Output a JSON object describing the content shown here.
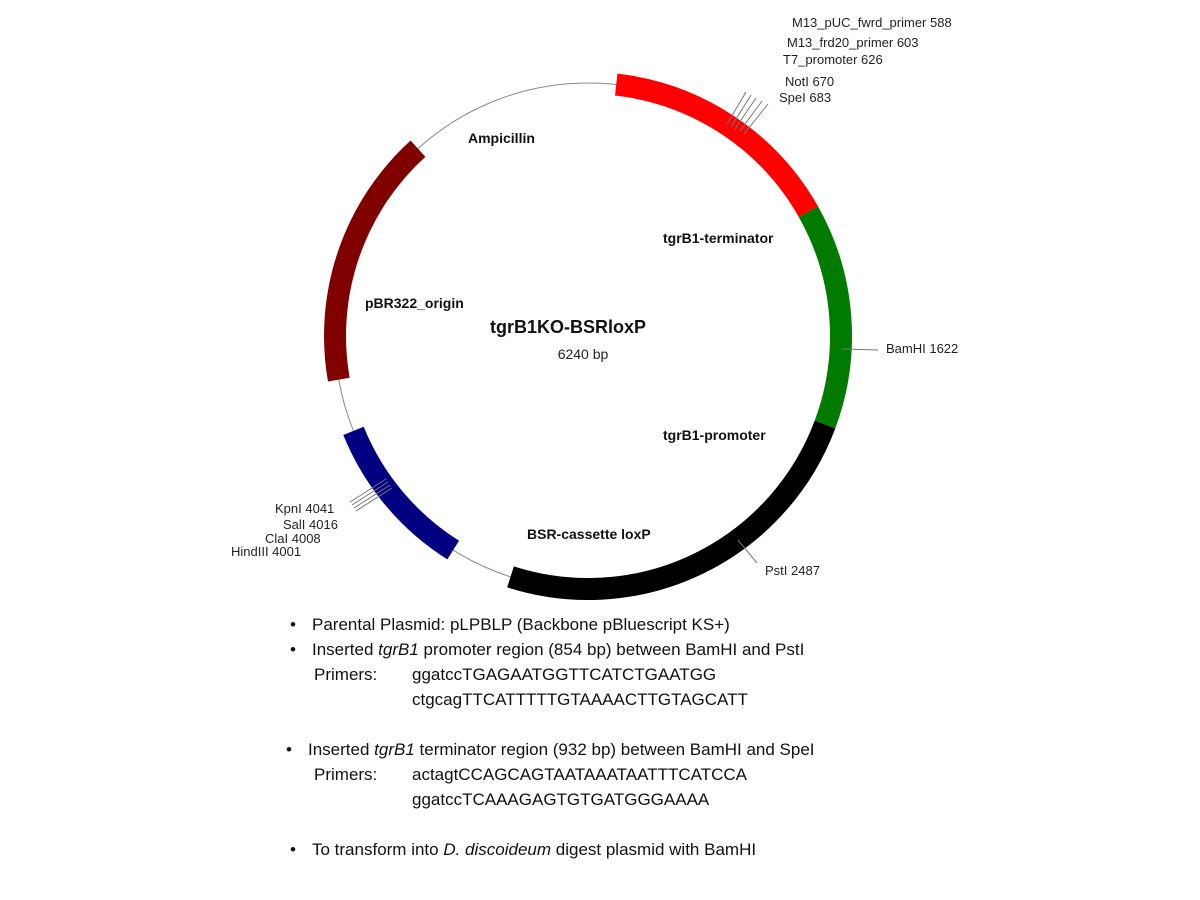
{
  "plasmid": {
    "name": "tgrB1KO-BSRloxP",
    "size_label": "6240 bp",
    "total_bp": 6240
  },
  "features": [
    {
      "key": "terminator",
      "label": "tgrB1-terminator",
      "start": 683,
      "end": 1622,
      "color": "#ff0000"
    },
    {
      "key": "promoter",
      "label": "tgrB1-promoter",
      "start": 1622,
      "end": 2487,
      "color": "#007a00"
    },
    {
      "key": "bsr",
      "label": "BSR-cassette loxP",
      "start": 2487,
      "end": 4001,
      "color": "#000000"
    },
    {
      "key": "pbr322",
      "label": "pBR322_origin",
      "start": 4250,
      "end": 4870,
      "color": "#000080"
    },
    {
      "key": "ampicillin",
      "label": "Ampicillin",
      "start": 5080,
      "end": 6080,
      "color": "#800000"
    }
  ],
  "sites": [
    {
      "key": "m13-puc",
      "label": "M13_pUC_fwrd_primer 588",
      "position": 588
    },
    {
      "key": "m13-frd20",
      "label": "M13_frd20_primer 603",
      "position": 603
    },
    {
      "key": "t7",
      "label": "T7_promoter 626",
      "position": 626
    },
    {
      "key": "notl",
      "label": "NotI 670",
      "position": 670
    },
    {
      "key": "spel",
      "label": "SpeI 683",
      "position": 683
    },
    {
      "key": "bamhi",
      "label": "BamHI 1622",
      "position": 1622
    },
    {
      "key": "pstl",
      "label": "PstI 2487",
      "position": 2487
    },
    {
      "key": "kpnl",
      "label": "KpnI 4041",
      "position": 4041
    },
    {
      "key": "sall",
      "label": "SalI 4016",
      "position": 4016
    },
    {
      "key": "clal",
      "label": "ClaI 4008",
      "position": 4008
    },
    {
      "key": "hindiii",
      "label": "HindIII 4001",
      "position": 4001
    }
  ],
  "notes": {
    "b1": "Parental Plasmid: pLPBLP (Backbone pBluescript KS+)",
    "b2_pre": "Inserted ",
    "b2_em": "tgrB1",
    "b2_post": " promoter region (854 bp) between BamHI and PstI",
    "b2_primers_label": "Primers:",
    "b2_primer1": "ggatccTGAGAATGGTTCATCTGAATGG",
    "b2_primer2": "ctgcagTTCATTTTTGTAAAACTTGTAGCATT",
    "b3_pre": "Inserted ",
    "b3_em": "tgrB1",
    "b3_post": " terminator region (932 bp) between BamHI and SpeI",
    "b3_primers_label": "Primers:",
    "b3_primer1": "actagtCCAGCAGTAATAAATAATTTCATCCA",
    "b3_primer2": "ggatccTCAAAGAGTGTGATGGGAAAA",
    "b4_pre": "To transform into ",
    "b4_em": "D. discoideum",
    "b4_post": " digest plasmid with BamHI",
    "bullet_char": "•"
  }
}
